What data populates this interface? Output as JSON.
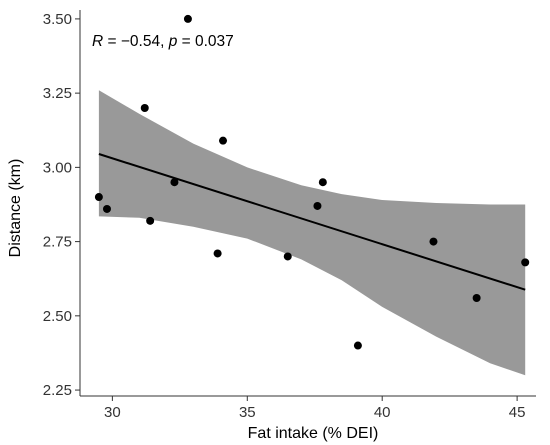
{
  "chart_data": {
    "type": "scatter",
    "title": "",
    "xlabel": "Fat intake (% DEI)",
    "ylabel": "Distance (km)",
    "xlim": [
      28.8,
      45.7
    ],
    "ylim": [
      2.23,
      3.53
    ],
    "x_ticks": [
      30,
      35,
      40,
      45
    ],
    "y_ticks": [
      2.25,
      2.5,
      2.75,
      3.0,
      3.25,
      3.5
    ],
    "y_tick_labels": [
      "2.25",
      "2.50",
      "2.75",
      "3.00",
      "3.25",
      "3.50"
    ],
    "grid": false,
    "legend": "none",
    "annotation": {
      "r_symbol": "R",
      "r_value": " = −0.54, ",
      "p_symbol": "p",
      "p_value": " = 0.037"
    },
    "points": [
      {
        "x": 29.5,
        "y": 2.9
      },
      {
        "x": 29.8,
        "y": 2.86
      },
      {
        "x": 31.2,
        "y": 3.2
      },
      {
        "x": 31.4,
        "y": 2.82
      },
      {
        "x": 32.3,
        "y": 2.95
      },
      {
        "x": 32.8,
        "y": 3.5
      },
      {
        "x": 33.9,
        "y": 2.71
      },
      {
        "x": 34.1,
        "y": 3.09
      },
      {
        "x": 36.5,
        "y": 2.7
      },
      {
        "x": 37.6,
        "y": 2.87
      },
      {
        "x": 37.8,
        "y": 2.95
      },
      {
        "x": 39.1,
        "y": 2.4
      },
      {
        "x": 41.9,
        "y": 2.75
      },
      {
        "x": 43.5,
        "y": 2.56
      },
      {
        "x": 45.3,
        "y": 2.68
      }
    ],
    "fit_line": {
      "x": [
        29.5,
        45.3
      ],
      "y": [
        3.045,
        2.588
      ]
    },
    "confidence_band": {
      "x": [
        29.5,
        31.0,
        33.0,
        35.0,
        37.0,
        38.5,
        40.0,
        42.0,
        44.0,
        45.3
      ],
      "upper": [
        3.26,
        3.18,
        3.08,
        3.0,
        2.94,
        2.91,
        2.89,
        2.88,
        2.875,
        2.875
      ],
      "lower": [
        2.835,
        2.83,
        2.8,
        2.76,
        2.69,
        2.62,
        2.53,
        2.43,
        2.34,
        2.3
      ]
    },
    "colors": {
      "band": "#999999",
      "line": "#000000",
      "points": "#000000",
      "axis": "#333333"
    }
  }
}
